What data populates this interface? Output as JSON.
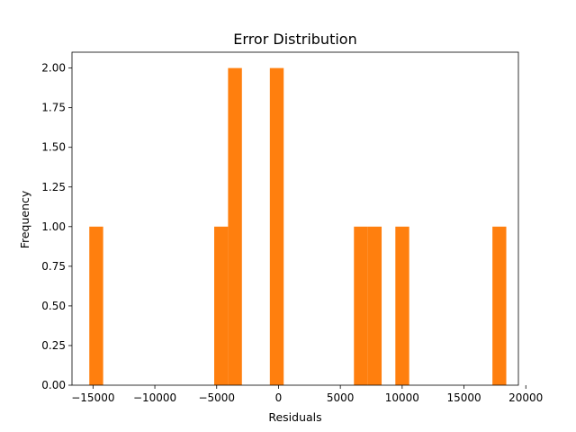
{
  "chart_data": {
    "type": "bar",
    "title": "Error Distribution",
    "xlabel": "Residuals",
    "ylabel": "Frequency",
    "xlim": [
      -16700,
      19400
    ],
    "ylim": [
      0,
      2.1
    ],
    "grid": false,
    "bar_color": "#ff7f0e",
    "bin_width": 1120,
    "bins": [
      {
        "x": -15300,
        "count": 1
      },
      {
        "x": -5200,
        "count": 1
      },
      {
        "x": -4080,
        "count": 2
      },
      {
        "x": -700,
        "count": 2
      },
      {
        "x": 6100,
        "count": 1
      },
      {
        "x": 7220,
        "count": 1
      },
      {
        "x": 9450,
        "count": 1
      },
      {
        "x": 17300,
        "count": 1
      }
    ],
    "x_ticks": [
      {
        "value": -15000,
        "label": "−15000"
      },
      {
        "value": -10000,
        "label": "−10000"
      },
      {
        "value": -5000,
        "label": "−5000"
      },
      {
        "value": 0,
        "label": "0"
      },
      {
        "value": 5000,
        "label": "5000"
      },
      {
        "value": 10000,
        "label": "10000"
      },
      {
        "value": 15000,
        "label": "15000"
      },
      {
        "value": 20000,
        "label": "20000"
      }
    ],
    "y_ticks": [
      {
        "value": 0,
        "label": "0.00"
      },
      {
        "value": 0.25,
        "label": "0.25"
      },
      {
        "value": 0.5,
        "label": "0.50"
      },
      {
        "value": 0.75,
        "label": "0.75"
      },
      {
        "value": 1.0,
        "label": "1.00"
      },
      {
        "value": 1.25,
        "label": "1.25"
      },
      {
        "value": 1.5,
        "label": "1.50"
      },
      {
        "value": 1.75,
        "label": "1.75"
      },
      {
        "value": 2.0,
        "label": "2.00"
      }
    ]
  }
}
